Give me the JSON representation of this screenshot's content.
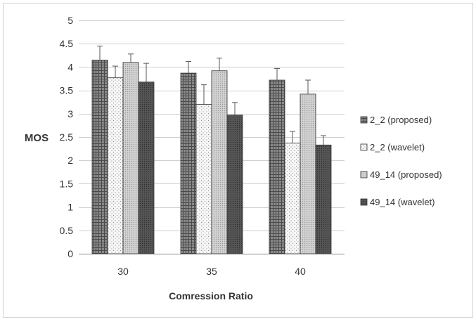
{
  "chart_data": {
    "type": "bar",
    "title": "",
    "xlabel": "Comression Ratio",
    "ylabel": "MOS",
    "categories": [
      "30",
      "35",
      "40"
    ],
    "ylim": [
      0,
      5
    ],
    "yticks": [
      "0",
      "0.5",
      "1",
      "1.5",
      "2",
      "2.5",
      "3",
      "3.5",
      "4",
      "4.5",
      "5"
    ],
    "grid": true,
    "legend_position": "right",
    "series": [
      {
        "name": "2_2 (proposed)",
        "values": [
          4.15,
          3.87,
          3.72
        ],
        "errors": [
          0.3,
          0.25,
          0.25
        ],
        "pattern": "dark-grid",
        "color": "#7a7a7a"
      },
      {
        "name": "2_2 (wavelet)",
        "values": [
          3.77,
          3.2,
          2.37
        ],
        "errors": [
          0.25,
          0.42,
          0.25
        ],
        "pattern": "sparse-dots",
        "color": "#f4f4f4"
      },
      {
        "name": "49_14 (proposed)",
        "values": [
          4.1,
          3.92,
          3.42
        ],
        "errors": [
          0.18,
          0.27,
          0.3
        ],
        "pattern": "light-grid",
        "color": "#c4c4c4"
      },
      {
        "name": "49_14 (wavelet)",
        "values": [
          3.68,
          2.97,
          2.33
        ],
        "errors": [
          0.4,
          0.27,
          0.2
        ],
        "pattern": "dark-dots",
        "color": "#5a5a5a"
      }
    ]
  }
}
